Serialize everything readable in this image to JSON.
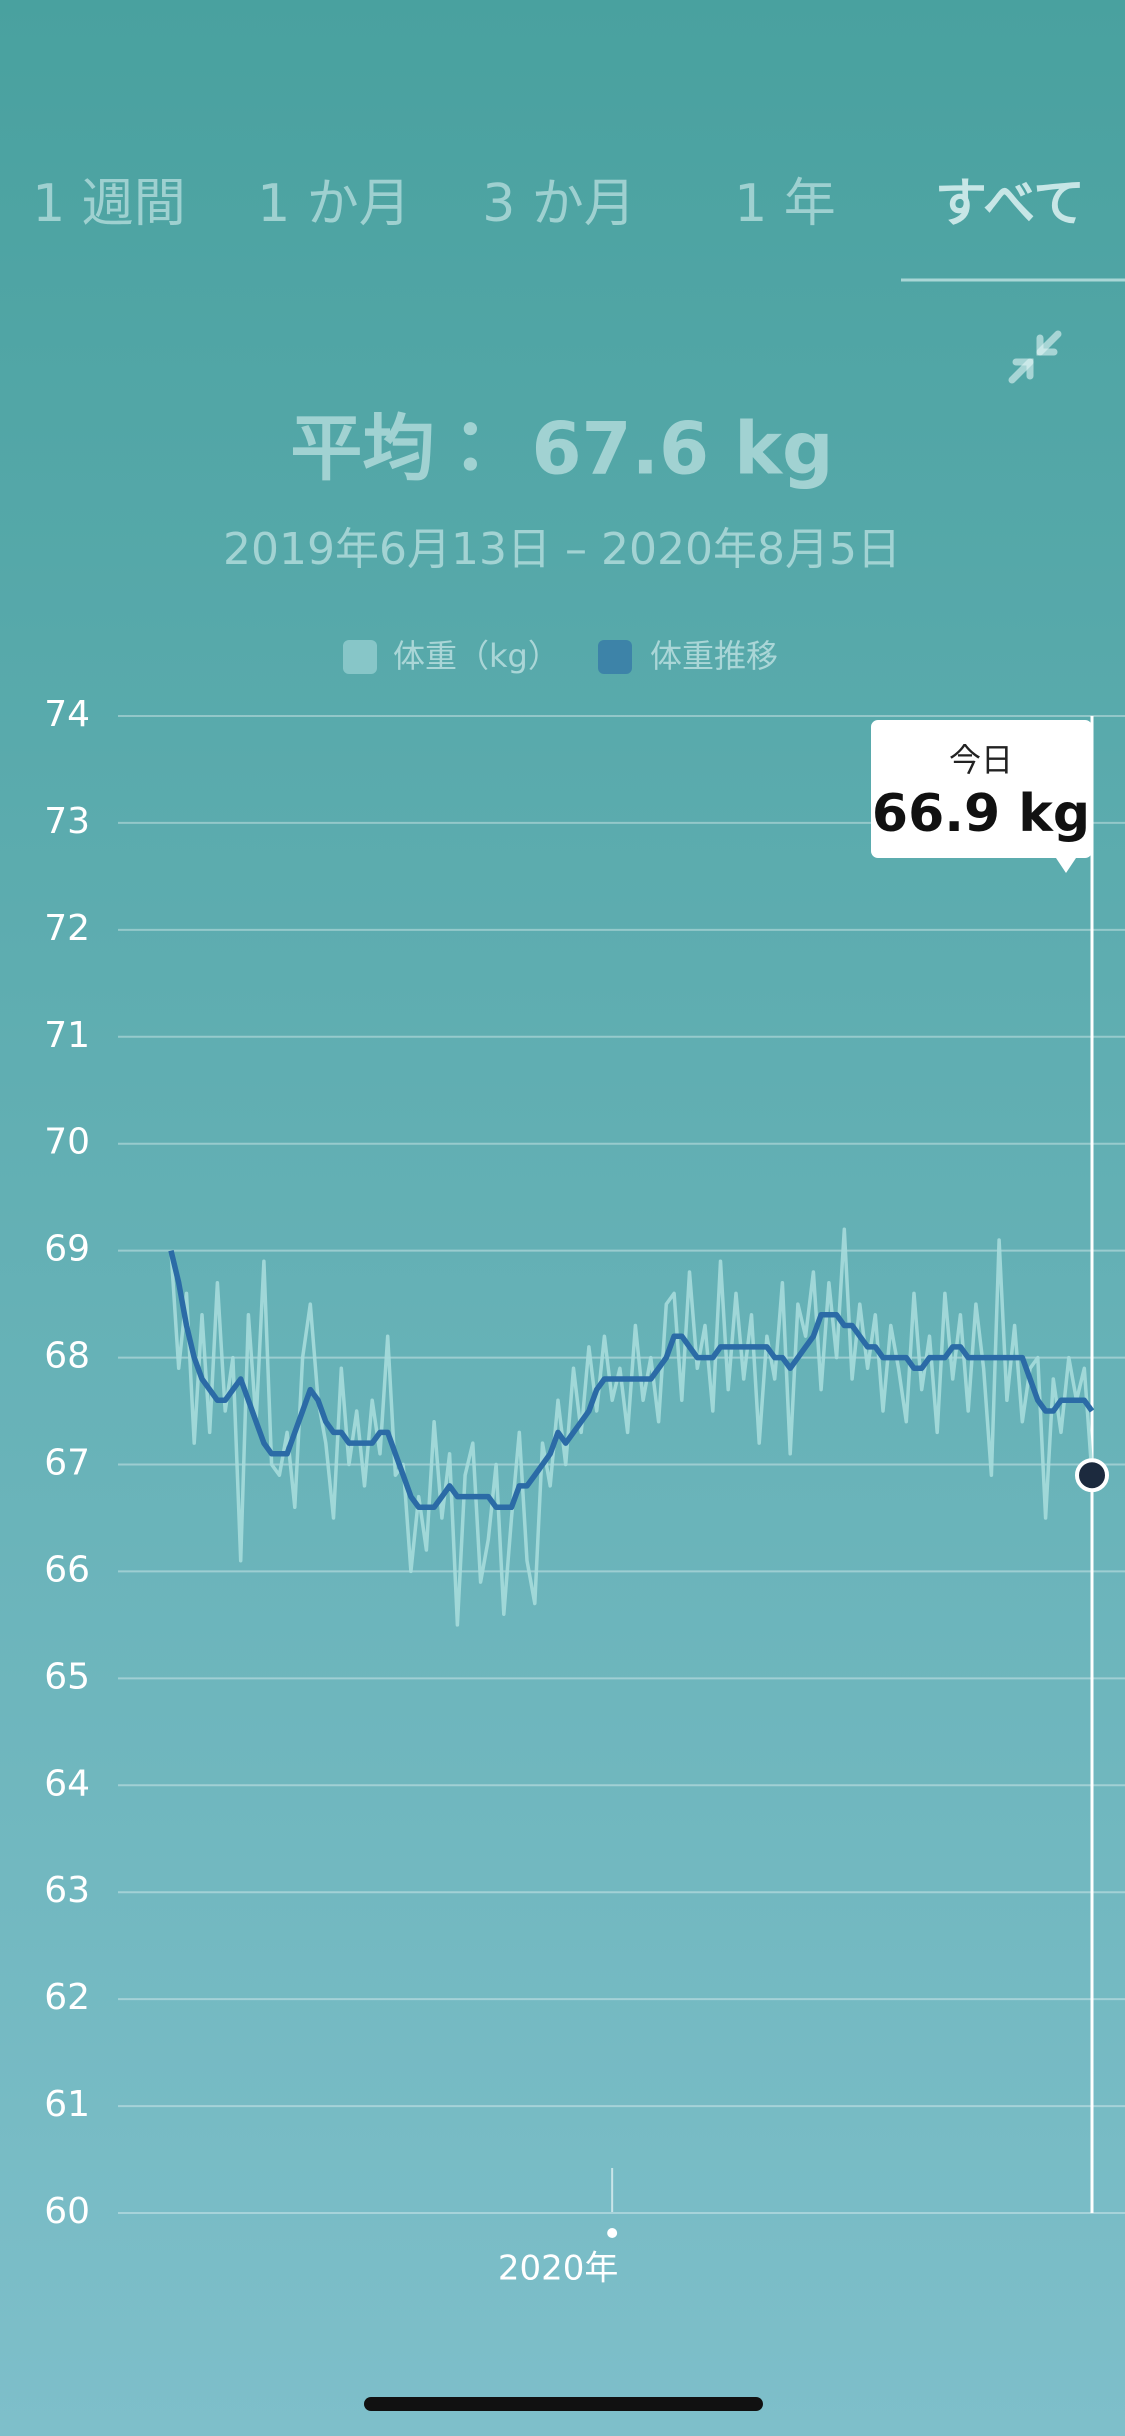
{
  "tabs": [
    "1 週間",
    "1 か月",
    "3 か月",
    "1 年",
    "すべて"
  ],
  "selected_tab": 4,
  "average": "平均： 67.6 kg",
  "date_range": "2019年6月13日 – 2020年8月5日",
  "tooltip": {
    "title": "今日",
    "value": "66.9 kg"
  },
  "chart_data": {
    "type": "line",
    "categories": [
      null,
      null,
      null,
      null,
      null,
      null,
      null,
      null,
      null,
      null,
      null,
      null,
      null,
      null,
      null,
      null,
      null,
      null,
      null,
      null,
      null,
      null,
      null,
      null,
      null,
      null,
      null,
      null,
      null,
      null,
      null,
      null,
      null,
      null,
      null,
      null,
      null,
      null,
      null,
      null,
      null,
      null,
      null,
      null,
      null,
      null,
      null,
      null,
      null,
      null,
      null,
      null,
      null,
      null,
      null,
      null,
      null,
      "2020年",
      null,
      null,
      null,
      null,
      null,
      null,
      null,
      null,
      null,
      null,
      null,
      null,
      null,
      null,
      null,
      null,
      null,
      null,
      null,
      null,
      null,
      null,
      null,
      null,
      null,
      null,
      null,
      null,
      null,
      null,
      null,
      null,
      null,
      null,
      null,
      null,
      null,
      null,
      null,
      null,
      null,
      null,
      null,
      null,
      null,
      null,
      null,
      null,
      null,
      null,
      null,
      null,
      null,
      null,
      null,
      null,
      null,
      null,
      null,
      null,
      null,
      null
    ],
    "series": [
      {
        "name": "体重（kg）",
        "color": "#a6dbdc",
        "values": [
          69.0,
          67.9,
          68.6,
          67.2,
          68.4,
          67.3,
          68.7,
          67.5,
          68.0,
          66.1,
          68.4,
          67.4,
          68.9,
          67.0,
          66.9,
          67.3,
          66.6,
          68.0,
          68.5,
          67.6,
          67.2,
          66.5,
          67.9,
          67.0,
          67.5,
          66.8,
          67.6,
          67.1,
          68.2,
          66.9,
          67.0,
          66.0,
          66.7,
          66.2,
          67.4,
          66.5,
          67.1,
          65.5,
          66.9,
          67.2,
          65.9,
          66.3,
          67.0,
          65.6,
          66.5,
          67.3,
          66.1,
          65.7,
          67.2,
          66.8,
          67.6,
          67.0,
          67.9,
          67.3,
          68.1,
          67.5,
          68.2,
          67.6,
          67.9,
          67.3,
          68.3,
          67.6,
          68.0,
          67.4,
          68.5,
          68.6,
          67.6,
          68.8,
          67.9,
          68.3,
          67.5,
          68.9,
          67.7,
          68.6,
          67.8,
          68.4,
          67.2,
          68.2,
          67.8,
          68.7,
          67.1,
          68.5,
          68.2,
          68.8,
          67.7,
          68.7,
          68.0,
          69.2,
          67.8,
          68.5,
          67.9,
          68.4,
          67.5,
          68.3,
          67.9,
          67.4,
          68.6,
          67.7,
          68.2,
          67.3,
          68.6,
          67.8,
          68.4,
          67.5,
          68.5,
          67.9,
          66.9,
          69.1,
          67.6,
          68.3,
          67.4,
          67.9,
          68.0,
          66.5,
          67.8,
          67.3,
          68.0,
          67.6,
          67.9,
          66.9
        ]
      },
      {
        "name": "体重推移",
        "color": "#2b6ba6",
        "values": [
          69.0,
          68.7,
          68.3,
          68.0,
          67.8,
          67.7,
          67.6,
          67.6,
          67.7,
          67.8,
          67.6,
          67.4,
          67.2,
          67.1,
          67.1,
          67.1,
          67.3,
          67.5,
          67.7,
          67.6,
          67.4,
          67.3,
          67.3,
          67.2,
          67.2,
          67.2,
          67.2,
          67.3,
          67.3,
          67.1,
          66.9,
          66.7,
          66.6,
          66.6,
          66.6,
          66.7,
          66.8,
          66.7,
          66.7,
          66.7,
          66.7,
          66.7,
          66.6,
          66.6,
          66.6,
          66.8,
          66.8,
          66.9,
          67.0,
          67.1,
          67.3,
          67.2,
          67.3,
          67.4,
          67.5,
          67.7,
          67.8,
          67.8,
          67.8,
          67.8,
          67.8,
          67.8,
          67.8,
          67.9,
          68.0,
          68.2,
          68.2,
          68.1,
          68.0,
          68.0,
          68.0,
          68.1,
          68.1,
          68.1,
          68.1,
          68.1,
          68.1,
          68.1,
          68.0,
          68.0,
          67.9,
          68.0,
          68.1,
          68.2,
          68.4,
          68.4,
          68.4,
          68.3,
          68.3,
          68.2,
          68.1,
          68.1,
          68.0,
          68.0,
          68.0,
          68.0,
          67.9,
          67.9,
          68.0,
          68.0,
          68.0,
          68.1,
          68.1,
          68.0,
          68.0,
          68.0,
          68.0,
          68.0,
          68.0,
          68.0,
          68.0,
          67.8,
          67.6,
          67.5,
          67.5,
          67.6,
          67.6,
          67.6,
          67.6,
          67.5
        ]
      }
    ],
    "ylim": [
      60,
      74
    ],
    "yticks": [
      60,
      61,
      62,
      63,
      64,
      65,
      66,
      67,
      68,
      69,
      70,
      71,
      72,
      73,
      74
    ],
    "grid": true
  }
}
